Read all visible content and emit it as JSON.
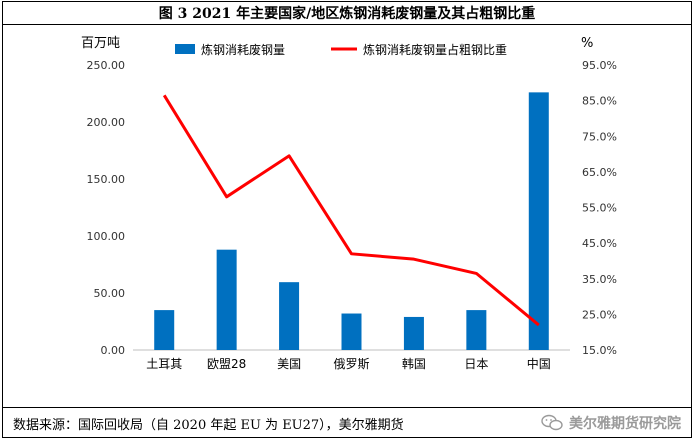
{
  "figure": {
    "title": "图 3  2021 年主要国家/地区炼钢消耗废钢量及其占粗钢比重",
    "source": "数据来源：国际回收局（自 2020 年起 EU 为 EU27），美尔雅期货",
    "watermark": "美尔雅期货研究院"
  },
  "chart_data": {
    "type": "bar",
    "categories": [
      "土耳其",
      "欧盟28",
      "美国",
      "俄罗斯",
      "韩国",
      "日本",
      "中国"
    ],
    "left_axis": {
      "unit_label": "百万吨",
      "ylim": [
        0,
        250
      ],
      "ticks": [
        "0.00",
        "50.00",
        "100.00",
        "150.00",
        "200.00",
        "250.00"
      ]
    },
    "right_axis": {
      "unit_label": "%",
      "ylim": [
        15,
        95
      ],
      "ticks": [
        "15.0%",
        "25.0%",
        "35.0%",
        "45.0%",
        "55.0%",
        "65.0%",
        "75.0%",
        "85.0%",
        "95.0%"
      ]
    },
    "series": [
      {
        "name": "炼钢消耗废钢量",
        "kind": "bar",
        "axis": "left",
        "color": "#0070C0",
        "values": [
          35,
          88,
          59.5,
          32,
          29,
          35,
          226
        ]
      },
      {
        "name": "炼钢消耗废钢量占粗钢比重",
        "kind": "line",
        "axis": "right",
        "color": "#FF0000",
        "values": [
          86.5,
          58,
          69.5,
          42,
          40.5,
          36.5,
          22
        ]
      }
    ],
    "legend_position": "top",
    "grid": false
  }
}
